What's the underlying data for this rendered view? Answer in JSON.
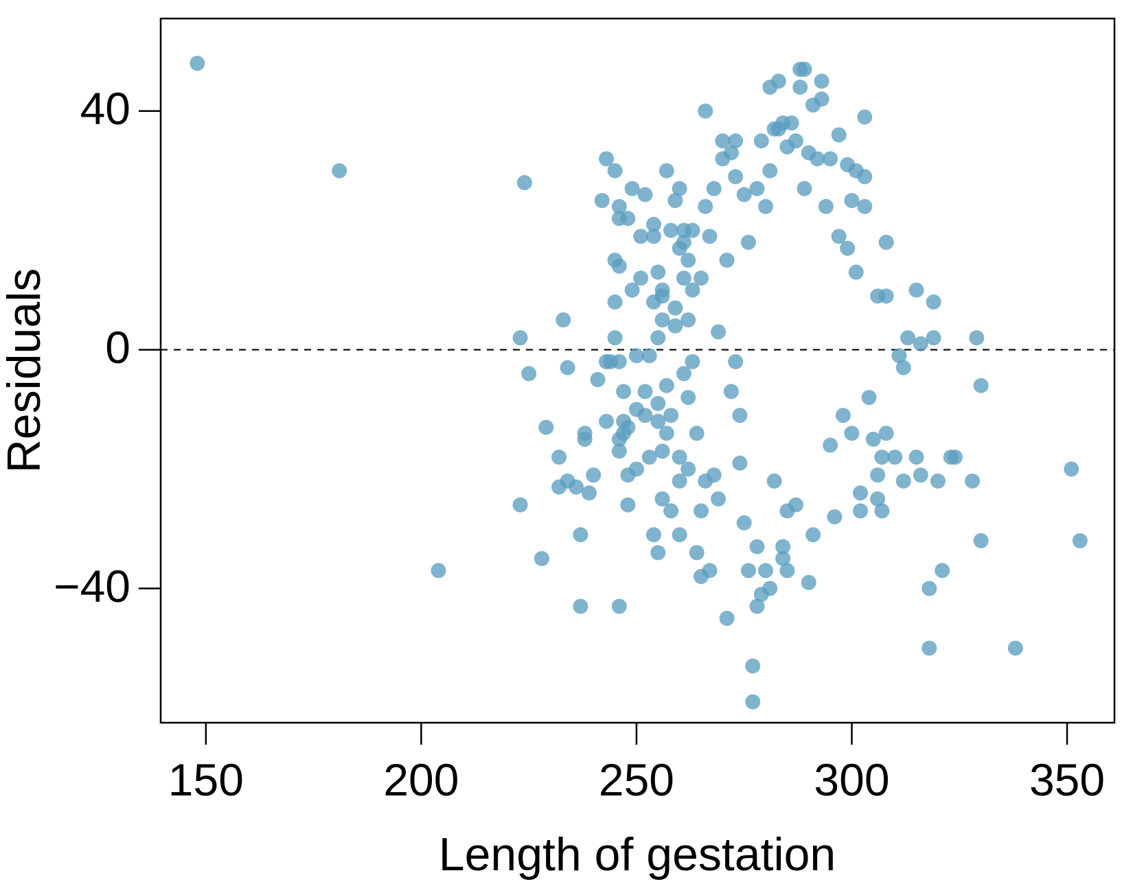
{
  "chart_data": {
    "type": "scatter",
    "title": "",
    "xlabel": "Length of gestation",
    "ylabel": "Residuals",
    "xlim": [
      139.5,
      361
    ],
    "ylim": [
      -62.5,
      55.5
    ],
    "xticks": [
      150,
      200,
      250,
      300,
      350
    ],
    "yticks": [
      -40,
      0,
      40
    ],
    "xtick_labels": [
      "150",
      "200",
      "250",
      "300",
      "350"
    ],
    "ytick_labels": [
      "−40",
      "0",
      "40"
    ],
    "reference_line": {
      "y": 0,
      "style": "dashed"
    },
    "grid": false,
    "legend": "none",
    "point_color": "#5b9dc0",
    "series": [
      {
        "points": [
          [
            148,
            48
          ],
          [
            181,
            30
          ],
          [
            204,
            -37
          ],
          [
            223,
            2
          ],
          [
            224,
            28
          ],
          [
            225,
            -4
          ],
          [
            223,
            -26
          ],
          [
            228,
            -35
          ],
          [
            229,
            -13
          ],
          [
            232,
            -18
          ],
          [
            232,
            -23
          ],
          [
            233,
            5
          ],
          [
            234,
            -22
          ],
          [
            234,
            -3
          ],
          [
            236,
            -23
          ],
          [
            237,
            -43
          ],
          [
            237,
            -31
          ],
          [
            238,
            -14
          ],
          [
            238,
            -15
          ],
          [
            239,
            -24
          ],
          [
            240,
            -21
          ],
          [
            241,
            -5
          ],
          [
            242,
            25
          ],
          [
            243,
            -2
          ],
          [
            243,
            -12
          ],
          [
            243,
            32
          ],
          [
            244,
            -2
          ],
          [
            245,
            8
          ],
          [
            245,
            15
          ],
          [
            245,
            30
          ],
          [
            245,
            2
          ],
          [
            246,
            -2
          ],
          [
            246,
            -15
          ],
          [
            246,
            -17
          ],
          [
            246,
            -43
          ],
          [
            246,
            22
          ],
          [
            246,
            24
          ],
          [
            246,
            14
          ],
          [
            247,
            -7
          ],
          [
            247,
            -12
          ],
          [
            247,
            -14
          ],
          [
            248,
            -21
          ],
          [
            248,
            -26
          ],
          [
            248,
            22
          ],
          [
            248,
            -13
          ],
          [
            249,
            27
          ],
          [
            249,
            10
          ],
          [
            250,
            -1
          ],
          [
            250,
            -10
          ],
          [
            250,
            -20
          ],
          [
            251,
            12
          ],
          [
            251,
            19
          ],
          [
            252,
            -7
          ],
          [
            252,
            -11
          ],
          [
            252,
            26
          ],
          [
            253,
            -18
          ],
          [
            253,
            -1
          ],
          [
            254,
            21
          ],
          [
            254,
            8
          ],
          [
            254,
            -31
          ],
          [
            254,
            19
          ],
          [
            255,
            -9
          ],
          [
            255,
            -12
          ],
          [
            255,
            13
          ],
          [
            255,
            2
          ],
          [
            255,
            -34
          ],
          [
            256,
            -17
          ],
          [
            256,
            -25
          ],
          [
            256,
            10
          ],
          [
            256,
            5
          ],
          [
            256,
            9
          ],
          [
            257,
            -6
          ],
          [
            257,
            -14
          ],
          [
            257,
            30
          ],
          [
            258,
            -11
          ],
          [
            258,
            -27
          ],
          [
            258,
            20
          ],
          [
            259,
            4
          ],
          [
            259,
            7
          ],
          [
            259,
            25
          ],
          [
            260,
            -18
          ],
          [
            260,
            -22
          ],
          [
            260,
            -31
          ],
          [
            260,
            17
          ],
          [
            260,
            27
          ],
          [
            261,
            12
          ],
          [
            261,
            20
          ],
          [
            261,
            -4
          ],
          [
            261,
            18
          ],
          [
            262,
            5
          ],
          [
            262,
            -20
          ],
          [
            262,
            15
          ],
          [
            262,
            -8
          ],
          [
            263,
            20
          ],
          [
            263,
            -2
          ],
          [
            263,
            10
          ],
          [
            264,
            -14
          ],
          [
            264,
            -34
          ],
          [
            265,
            -27
          ],
          [
            265,
            -38
          ],
          [
            265,
            12
          ],
          [
            266,
            40
          ],
          [
            266,
            -22
          ],
          [
            266,
            24
          ],
          [
            267,
            -37
          ],
          [
            267,
            19
          ],
          [
            268,
            27
          ],
          [
            268,
            -21
          ],
          [
            269,
            3
          ],
          [
            269,
            -25
          ],
          [
            270,
            35
          ],
          [
            270,
            32
          ],
          [
            271,
            -45
          ],
          [
            271,
            15
          ],
          [
            272,
            33
          ],
          [
            272,
            -7
          ],
          [
            273,
            35
          ],
          [
            273,
            29
          ],
          [
            273,
            -2
          ],
          [
            274,
            -11
          ],
          [
            274,
            -19
          ],
          [
            275,
            26
          ],
          [
            275,
            -29
          ],
          [
            276,
            -37
          ],
          [
            276,
            18
          ],
          [
            277,
            -53
          ],
          [
            277,
            -59
          ],
          [
            278,
            -43
          ],
          [
            278,
            -33
          ],
          [
            278,
            27
          ],
          [
            279,
            -41
          ],
          [
            279,
            35
          ],
          [
            280,
            -37
          ],
          [
            280,
            24
          ],
          [
            281,
            -40
          ],
          [
            281,
            44
          ],
          [
            281,
            30
          ],
          [
            282,
            37
          ],
          [
            282,
            -22
          ],
          [
            283,
            45
          ],
          [
            283,
            37
          ],
          [
            284,
            -33
          ],
          [
            284,
            -35
          ],
          [
            284,
            38
          ],
          [
            285,
            34
          ],
          [
            285,
            -37
          ],
          [
            285,
            -27
          ],
          [
            286,
            38
          ],
          [
            287,
            35
          ],
          [
            287,
            -26
          ],
          [
            288,
            47
          ],
          [
            288,
            44
          ],
          [
            289,
            47
          ],
          [
            289,
            27
          ],
          [
            290,
            -39
          ],
          [
            290,
            33
          ],
          [
            291,
            41
          ],
          [
            291,
            -31
          ],
          [
            292,
            32
          ],
          [
            293,
            42
          ],
          [
            293,
            45
          ],
          [
            294,
            24
          ],
          [
            295,
            -16
          ],
          [
            295,
            32
          ],
          [
            296,
            -28
          ],
          [
            297,
            19
          ],
          [
            297,
            36
          ],
          [
            298,
            -11
          ],
          [
            299,
            17
          ],
          [
            299,
            31
          ],
          [
            300,
            25
          ],
          [
            300,
            -14
          ],
          [
            301,
            30
          ],
          [
            301,
            13
          ],
          [
            302,
            -27
          ],
          [
            302,
            -24
          ],
          [
            303,
            29
          ],
          [
            303,
            39
          ],
          [
            303,
            24
          ],
          [
            304,
            -8
          ],
          [
            305,
            -15
          ],
          [
            306,
            -25
          ],
          [
            306,
            -21
          ],
          [
            306,
            9
          ],
          [
            307,
            -27
          ],
          [
            307,
            -18
          ],
          [
            308,
            18
          ],
          [
            308,
            -14
          ],
          [
            308,
            9
          ],
          [
            310,
            -18
          ],
          [
            311,
            -1
          ],
          [
            312,
            -22
          ],
          [
            312,
            -3
          ],
          [
            313,
            2
          ],
          [
            315,
            -18
          ],
          [
            315,
            10
          ],
          [
            316,
            -21
          ],
          [
            316,
            1
          ],
          [
            318,
            -40
          ],
          [
            318,
            -50
          ],
          [
            319,
            8
          ],
          [
            319,
            2
          ],
          [
            320,
            -22
          ],
          [
            321,
            -37
          ],
          [
            323,
            -18
          ],
          [
            324,
            -18
          ],
          [
            328,
            -22
          ],
          [
            329,
            2
          ],
          [
            330,
            -6
          ],
          [
            330,
            -32
          ],
          [
            338,
            -50
          ],
          [
            351,
            -20
          ],
          [
            353,
            -32
          ]
        ]
      }
    ]
  }
}
